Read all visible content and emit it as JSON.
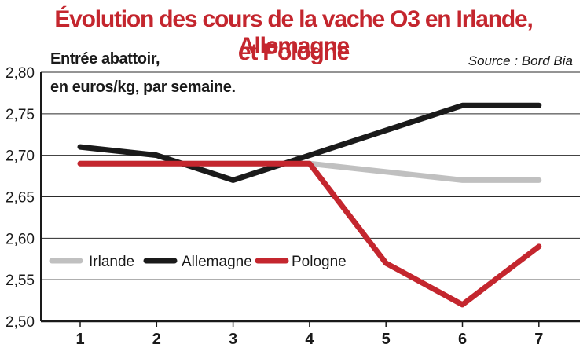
{
  "chart_data": {
    "type": "line",
    "title": "Évolution des cours de la vache O3 en Irlande, Allemagne et Pologne",
    "title_lines": [
      "Évolution des cours de la vache O3 en Irlande, Allemagne",
      "et Pologne"
    ],
    "subtitle_lines": [
      "Entrée abattoir,",
      "en euros/kg, par semaine."
    ],
    "source": "Source : Bord Bia",
    "x": [
      1,
      2,
      3,
      4,
      5,
      6,
      7
    ],
    "x_tick_labels": [
      "1",
      "2",
      "3",
      "4",
      "5",
      "6",
      "7"
    ],
    "ylim": [
      2.5,
      2.8
    ],
    "y_ticks": [
      2.5,
      2.55,
      2.6,
      2.65,
      2.7,
      2.75,
      2.8
    ],
    "y_tick_labels": [
      "2,50",
      "2,55",
      "2,60",
      "2,65",
      "2,70",
      "2,75",
      "2,80"
    ],
    "grid": true,
    "legend_position": "left, inside plot",
    "series": [
      {
        "name": "Irlande",
        "color": "#c0c0c0",
        "values": [
          2.69,
          2.69,
          2.69,
          2.69,
          2.68,
          2.67,
          2.67
        ]
      },
      {
        "name": "Allemagne",
        "color": "#1a1a1a",
        "values": [
          2.71,
          2.7,
          2.67,
          2.7,
          2.73,
          2.76,
          2.76
        ]
      },
      {
        "name": "Pologne",
        "color": "#c4262e",
        "values": [
          2.69,
          2.69,
          2.69,
          2.69,
          2.57,
          2.52,
          2.59
        ]
      }
    ]
  }
}
